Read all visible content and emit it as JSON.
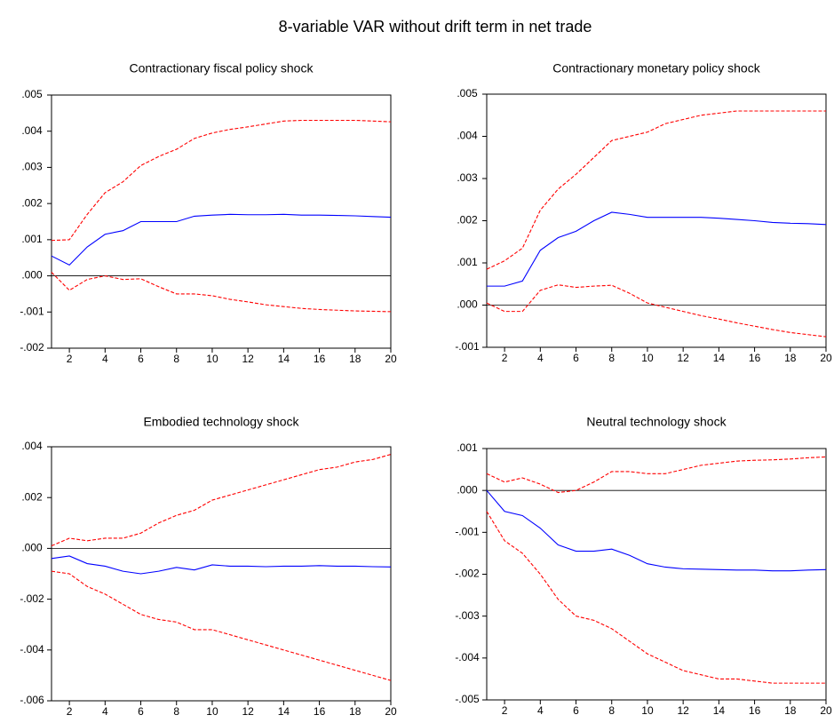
{
  "title": "8-variable VAR without drift term in net trade",
  "chart_data": [
    {
      "type": "line",
      "title": "Contractionary fiscal policy shock",
      "x": [
        1,
        2,
        3,
        4,
        5,
        6,
        7,
        8,
        9,
        10,
        11,
        12,
        13,
        14,
        15,
        16,
        17,
        18,
        19,
        20
      ],
      "xlim": [
        1,
        20
      ],
      "xticks": [
        2,
        4,
        6,
        8,
        10,
        12,
        14,
        16,
        18,
        20
      ],
      "ylim": [
        -0.002,
        0.005
      ],
      "yticks": [
        {
          "value": -0.002,
          "label": "-.002"
        },
        {
          "value": -0.001,
          "label": "-.001"
        },
        {
          "value": 0,
          "label": ".000"
        },
        {
          "value": 0.001,
          "label": ".001"
        },
        {
          "value": 0.002,
          "label": ".002"
        },
        {
          "value": 0.003,
          "label": ".003"
        },
        {
          "value": 0.004,
          "label": ".004"
        },
        {
          "value": 0.005,
          "label": ".005"
        }
      ],
      "zero_line": true,
      "series": [
        {
          "color": "#0000ff",
          "dashed": false,
          "values": [
            0.00055,
            0.0003,
            0.0008,
            0.00115,
            0.00125,
            0.0015,
            0.0015,
            0.0015,
            0.00165,
            0.00168,
            0.0017,
            0.00169,
            0.00169,
            0.0017,
            0.00168,
            0.00168,
            0.00167,
            0.00166,
            0.00164,
            0.00162
          ]
        },
        {
          "color": "#ff0000",
          "dashed": true,
          "values": [
            0.00098,
            0.001,
            0.0017,
            0.0023,
            0.0026,
            0.00305,
            0.0033,
            0.0035,
            0.0038,
            0.00395,
            0.00405,
            0.00412,
            0.0042,
            0.00428,
            0.0043,
            0.0043,
            0.0043,
            0.0043,
            0.00428,
            0.00426
          ]
        },
        {
          "color": "#ff0000",
          "dashed": true,
          "values": [
            0.0001,
            -0.0004,
            -0.0001,
            0,
            -0.0001,
            -8e-05,
            -0.0003,
            -0.0005,
            -0.0005,
            -0.00055,
            -0.00065,
            -0.00072,
            -0.0008,
            -0.00085,
            -0.0009,
            -0.00093,
            -0.00095,
            -0.00097,
            -0.00098,
            -0.00099
          ]
        }
      ]
    },
    {
      "type": "line",
      "title": "Contractionary monetary policy shock",
      "x": [
        1,
        2,
        3,
        4,
        5,
        6,
        7,
        8,
        9,
        10,
        11,
        12,
        13,
        14,
        15,
        16,
        17,
        18,
        19,
        20
      ],
      "xlim": [
        1,
        20
      ],
      "xticks": [
        2,
        4,
        6,
        8,
        10,
        12,
        14,
        16,
        18,
        20
      ],
      "ylim": [
        -0.001,
        0.005
      ],
      "yticks": [
        {
          "value": -0.001,
          "label": "-.001"
        },
        {
          "value": 0,
          "label": ".000"
        },
        {
          "value": 0.001,
          "label": ".001"
        },
        {
          "value": 0.002,
          "label": ".002"
        },
        {
          "value": 0.003,
          "label": ".003"
        },
        {
          "value": 0.004,
          "label": ".004"
        },
        {
          "value": 0.005,
          "label": ".005"
        }
      ],
      "zero_line": true,
      "series": [
        {
          "color": "#0000ff",
          "dashed": false,
          "values": [
            0.00045,
            0.00045,
            0.00057,
            0.0013,
            0.0016,
            0.00175,
            0.002,
            0.0022,
            0.00215,
            0.00208,
            0.00208,
            0.00208,
            0.00208,
            0.00206,
            0.00203,
            0.002,
            0.00196,
            0.00194,
            0.00193,
            0.00191
          ]
        },
        {
          "color": "#ff0000",
          "dashed": true,
          "values": [
            0.00085,
            0.00105,
            0.00135,
            0.00225,
            0.00275,
            0.0031,
            0.0035,
            0.0039,
            0.004,
            0.0041,
            0.0043,
            0.0044,
            0.0045,
            0.00455,
            0.0046,
            0.0046,
            0.0046,
            0.0046,
            0.0046,
            0.0046
          ]
        },
        {
          "color": "#ff0000",
          "dashed": true,
          "values": [
            5e-05,
            -0.00015,
            -0.00015,
            0.00035,
            0.00048,
            0.00042,
            0.00045,
            0.00047,
            0.00028,
            5e-05,
            -5e-05,
            -0.00015,
            -0.00025,
            -0.00033,
            -0.00042,
            -0.0005,
            -0.00058,
            -0.00065,
            -0.0007,
            -0.00075
          ]
        }
      ]
    },
    {
      "type": "line",
      "title": "Embodied technology shock",
      "x": [
        1,
        2,
        3,
        4,
        5,
        6,
        7,
        8,
        9,
        10,
        11,
        12,
        13,
        14,
        15,
        16,
        17,
        18,
        19,
        20
      ],
      "xlim": [
        1,
        20
      ],
      "xticks": [
        2,
        4,
        6,
        8,
        10,
        12,
        14,
        16,
        18,
        20
      ],
      "ylim": [
        -0.006,
        0.004
      ],
      "yticks": [
        {
          "value": -0.006,
          "label": "-.006"
        },
        {
          "value": -0.004,
          "label": "-.004"
        },
        {
          "value": -0.002,
          "label": "-.002"
        },
        {
          "value": 0,
          "label": ".000"
        },
        {
          "value": 0.002,
          "label": ".002"
        },
        {
          "value": 0.004,
          "label": ".004"
        }
      ],
      "zero_line": true,
      "series": [
        {
          "color": "#0000ff",
          "dashed": false,
          "values": [
            -0.0004,
            -0.0003,
            -0.0006,
            -0.0007,
            -0.0009,
            -0.001,
            -0.0009,
            -0.00075,
            -0.00085,
            -0.00065,
            -0.0007,
            -0.0007,
            -0.00072,
            -0.0007,
            -0.0007,
            -0.00068,
            -0.0007,
            -0.0007,
            -0.00072,
            -0.00073
          ]
        },
        {
          "color": "#ff0000",
          "dashed": true,
          "values": [
            0.0001,
            0.0004,
            0.0003,
            0.0004,
            0.0004,
            0.0006,
            0.001,
            0.0013,
            0.0015,
            0.0019,
            0.0021,
            0.0023,
            0.0025,
            0.0027,
            0.0029,
            0.0031,
            0.0032,
            0.0034,
            0.0035,
            0.0037
          ]
        },
        {
          "color": "#ff0000",
          "dashed": true,
          "values": [
            -0.0009,
            -0.001,
            -0.0015,
            -0.0018,
            -0.0022,
            -0.0026,
            -0.0028,
            -0.0029,
            -0.0032,
            -0.0032,
            -0.0034,
            -0.0036,
            -0.0038,
            -0.004,
            -0.0042,
            -0.0044,
            -0.0046,
            -0.0048,
            -0.005,
            -0.0052
          ]
        }
      ]
    },
    {
      "type": "line",
      "title": "Neutral technology shock",
      "x": [
        1,
        2,
        3,
        4,
        5,
        6,
        7,
        8,
        9,
        10,
        11,
        12,
        13,
        14,
        15,
        16,
        17,
        18,
        19,
        20
      ],
      "xlim": [
        1,
        20
      ],
      "xticks": [
        2,
        4,
        6,
        8,
        10,
        12,
        14,
        16,
        18,
        20
      ],
      "ylim": [
        -0.005,
        0.001
      ],
      "yticks": [
        {
          "value": -0.005,
          "label": "-.005"
        },
        {
          "value": -0.004,
          "label": "-.004"
        },
        {
          "value": -0.003,
          "label": "-.003"
        },
        {
          "value": -0.002,
          "label": "-.002"
        },
        {
          "value": -0.001,
          "label": "-.001"
        },
        {
          "value": 0,
          "label": ".000"
        },
        {
          "value": 0.001,
          "label": ".001"
        }
      ],
      "zero_line": true,
      "series": [
        {
          "color": "#0000ff",
          "dashed": false,
          "values": [
            0,
            -0.0005,
            -0.0006,
            -0.0009,
            -0.0013,
            -0.00145,
            -0.00145,
            -0.0014,
            -0.00155,
            -0.00175,
            -0.00183,
            -0.00187,
            -0.00188,
            -0.00189,
            -0.0019,
            -0.0019,
            -0.00192,
            -0.00192,
            -0.0019,
            -0.00189
          ]
        },
        {
          "color": "#ff0000",
          "dashed": true,
          "values": [
            0.0004,
            0.0002,
            0.0003,
            0.00015,
            -5e-05,
            0,
            0.0002,
            0.00045,
            0.00045,
            0.0004,
            0.0004,
            0.0005,
            0.0006,
            0.00065,
            0.0007,
            0.00072,
            0.00073,
            0.00075,
            0.00078,
            0.0008
          ]
        },
        {
          "color": "#ff0000",
          "dashed": true,
          "values": [
            -0.0005,
            -0.0012,
            -0.0015,
            -0.002,
            -0.0026,
            -0.003,
            -0.0031,
            -0.0033,
            -0.0036,
            -0.0039,
            -0.0041,
            -0.0043,
            -0.0044,
            -0.0045,
            -0.0045,
            -0.00455,
            -0.0046,
            -0.0046,
            -0.0046,
            -0.0046
          ]
        }
      ]
    }
  ]
}
